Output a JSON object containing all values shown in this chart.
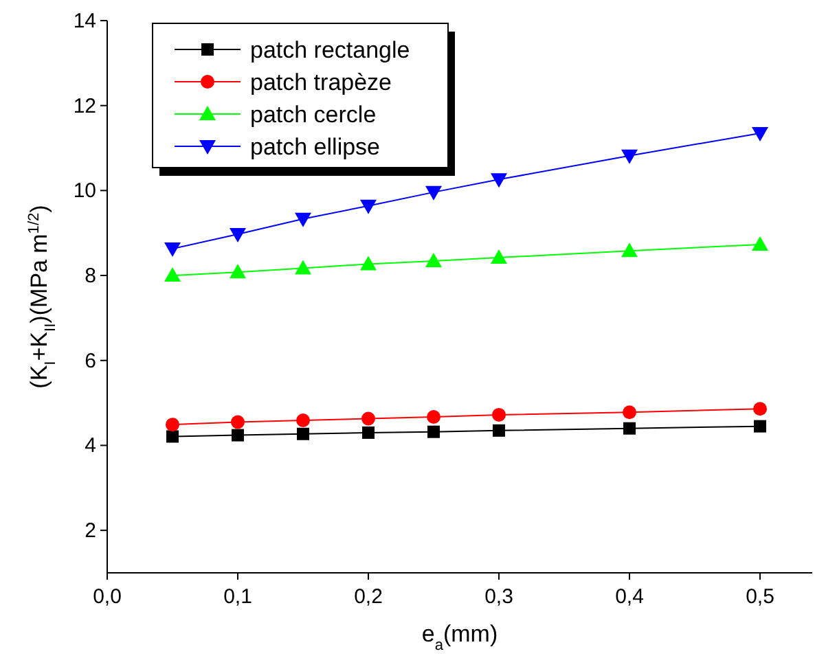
{
  "chart_data": {
    "type": "line",
    "xlabel": "e$_{a}$(mm)",
    "ylabel": "(K$_{I}$+K$_{II}$)(MPa m$^{1/2}$)",
    "x": [
      0.05,
      0.1,
      0.15,
      0.2,
      0.25,
      0.3,
      0.4,
      0.5
    ],
    "xlim": [
      0,
      0.54
    ],
    "ylim": [
      1,
      14
    ],
    "xticks": [
      {
        "value": 0,
        "label": "0,0"
      },
      {
        "value": 0.1,
        "label": "0,1"
      },
      {
        "value": 0.2,
        "label": "0,2"
      },
      {
        "value": 0.3,
        "label": "0,3"
      },
      {
        "value": 0.4,
        "label": "0,4"
      },
      {
        "value": 0.5,
        "label": "0,5"
      }
    ],
    "yticks": [
      2,
      4,
      6,
      8,
      10,
      12,
      14
    ],
    "grid": false,
    "legend": "top left",
    "line_style": "solid",
    "series": [
      {
        "name": "patch rectangle",
        "color": "#000000",
        "marker": "square",
        "values": [
          4.21,
          4.24,
          4.27,
          4.3,
          4.32,
          4.35,
          4.4,
          4.45
        ]
      },
      {
        "name": "patch trapèze",
        "color": "#ff0000",
        "marker": "circle",
        "values": [
          4.49,
          4.55,
          4.59,
          4.63,
          4.67,
          4.72,
          4.78,
          4.86
        ]
      },
      {
        "name": "patch cercle",
        "color": "#00ff00",
        "marker": "triangle",
        "values": [
          8.0,
          8.08,
          8.17,
          8.27,
          8.34,
          8.42,
          8.58,
          8.73
        ]
      },
      {
        "name": "patch ellipse",
        "color": "#0000ff",
        "marker": "triangle-down",
        "values": [
          8.63,
          8.97,
          9.33,
          9.64,
          9.96,
          10.26,
          10.82,
          11.35
        ]
      }
    ]
  }
}
